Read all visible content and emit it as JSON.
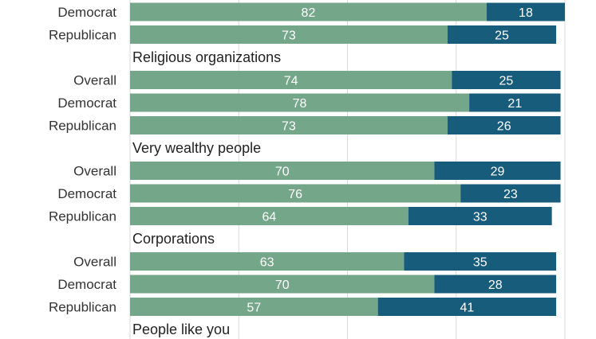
{
  "chart_data": {
    "type": "bar",
    "orientation": "horizontal",
    "stacked": true,
    "xlim": [
      0,
      100
    ],
    "grid": true,
    "colors": {
      "primary": "#74a68a",
      "secondary": "#185c7c"
    },
    "rows": [
      {
        "label": "Democrat",
        "values": [
          82,
          18
        ]
      },
      {
        "label": "Republican",
        "values": [
          73,
          25
        ]
      },
      {
        "group": "Religious organizations"
      },
      {
        "label": "Overall",
        "values": [
          74,
          25
        ]
      },
      {
        "label": "Democrat",
        "values": [
          78,
          21
        ]
      },
      {
        "label": "Republican",
        "values": [
          73,
          26
        ]
      },
      {
        "group": "Very wealthy people"
      },
      {
        "label": "Overall",
        "values": [
          70,
          29
        ]
      },
      {
        "label": "Democrat",
        "values": [
          76,
          23
        ]
      },
      {
        "label": "Republican",
        "values": [
          64,
          33
        ]
      },
      {
        "group": "Corporations"
      },
      {
        "label": "Overall",
        "values": [
          63,
          35
        ]
      },
      {
        "label": "Democrat",
        "values": [
          70,
          28
        ]
      },
      {
        "label": "Republican",
        "values": [
          57,
          41
        ]
      },
      {
        "group": "People like you"
      }
    ]
  }
}
